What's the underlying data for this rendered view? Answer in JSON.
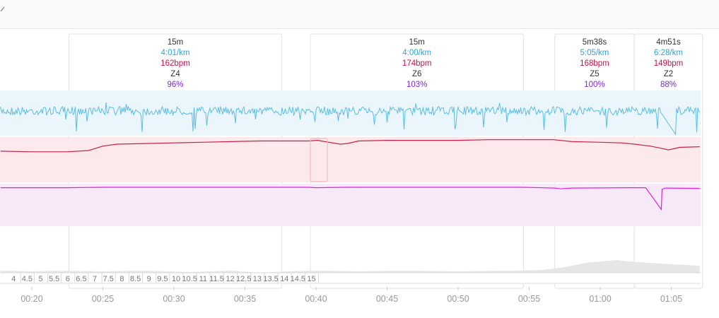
{
  "colors": {
    "pace": "#5bbce6",
    "pace_fill": "#eaf6fb",
    "heart_rate": "#c8204a",
    "heart_rate_fill": "#fbe9ec",
    "power": "#e020e0",
    "power_fill": "#f8e9f8",
    "elevation": "#e6e6e6",
    "duration_text": "#333333",
    "pace_text": "#2fa3d6",
    "hr_text": "#c8104a",
    "zone_text": "#333333",
    "intensity_text": "#7a2ad6",
    "segment_border": "#e2e2e2",
    "distance_box": "#d9d9d9"
  },
  "topbar": {
    "icon": "chevron-icon"
  },
  "segments": [
    {
      "duration": "15m",
      "pace": "4:01/km",
      "hr": "162bpm",
      "zone": "Z4",
      "intensity": "96%"
    },
    {
      "duration": "15m",
      "pace": "4:00/km",
      "hr": "174bpm",
      "zone": "Z6",
      "intensity": "103%"
    },
    {
      "duration": "5m38s",
      "pace": "5:05/km",
      "hr": "168bpm",
      "zone": "Z5",
      "intensity": "100%"
    },
    {
      "duration": "4m51s",
      "pace": "6:28/km",
      "hr": "149bpm",
      "zone": "Z2",
      "intensity": "88%"
    }
  ],
  "chart_data": {
    "type": "line",
    "x_unit": "elapsed time",
    "x_ticks": [
      "00:20",
      "00:25",
      "00:30",
      "00:35",
      "00:40",
      "00:45",
      "00:50",
      "00:55",
      "01:00",
      "01:05"
    ],
    "distance_ticks": [
      "4",
      "4.5",
      "5",
      "5.5",
      "6",
      "6.5",
      "7",
      "7.5",
      "8",
      "8.5",
      "9",
      "9.5",
      "10",
      "10.5",
      "11",
      "11.5",
      "12",
      "12.5",
      "13",
      "13.5",
      "14",
      "14.5",
      "15"
    ],
    "segments_minutes": [
      {
        "start": 22.6,
        "end": 37.6
      },
      {
        "start": 39.6,
        "end": 54.6
      },
      {
        "start": 56.8,
        "end": 62.4
      },
      {
        "start": 62.4,
        "end": 67.2
      }
    ],
    "heart_rate": {
      "x": [
        17.8,
        20,
        22.5,
        24,
        25,
        26,
        28,
        30,
        32,
        34,
        36,
        38,
        39.5,
        40.1,
        41.7,
        42.2,
        43,
        45,
        47,
        50,
        52,
        54.5,
        55.8,
        56.7,
        58,
        60,
        61.5,
        62.4,
        63.5,
        64.2,
        64.8,
        65.6,
        67
      ],
      "y": [
        149,
        148,
        148,
        150,
        157,
        160,
        161,
        162,
        163,
        164,
        165,
        165,
        165,
        166,
        160,
        161,
        165,
        166,
        166,
        166,
        167,
        167,
        167,
        167,
        164,
        163,
        162,
        160,
        157,
        154,
        151,
        155,
        156
      ]
    },
    "power": {
      "x": [
        17.8,
        20,
        22.5,
        25,
        30,
        35,
        39.5,
        40,
        42,
        47,
        52,
        54.5,
        56.8,
        57.2,
        58,
        62,
        63.2,
        64.3,
        64.35,
        64.6,
        67
      ],
      "y": [
        99,
        99,
        99,
        100,
        100,
        100,
        100,
        99,
        100,
        100,
        100,
        100,
        98,
        96,
        98,
        99,
        99,
        43,
        95,
        98,
        97
      ]
    },
    "elevation": {
      "x": [
        17.8,
        20,
        22,
        25,
        28,
        31,
        34,
        36,
        38,
        40,
        43,
        46,
        50,
        54,
        56,
        57.5,
        59,
        60.5,
        61.2,
        62,
        63.5,
        65,
        67
      ],
      "y": [
        3,
        2,
        3,
        2,
        3,
        1,
        3,
        0,
        2,
        3,
        2,
        3,
        2,
        3,
        4,
        8,
        14,
        17,
        18,
        16,
        14,
        12,
        10
      ]
    }
  }
}
